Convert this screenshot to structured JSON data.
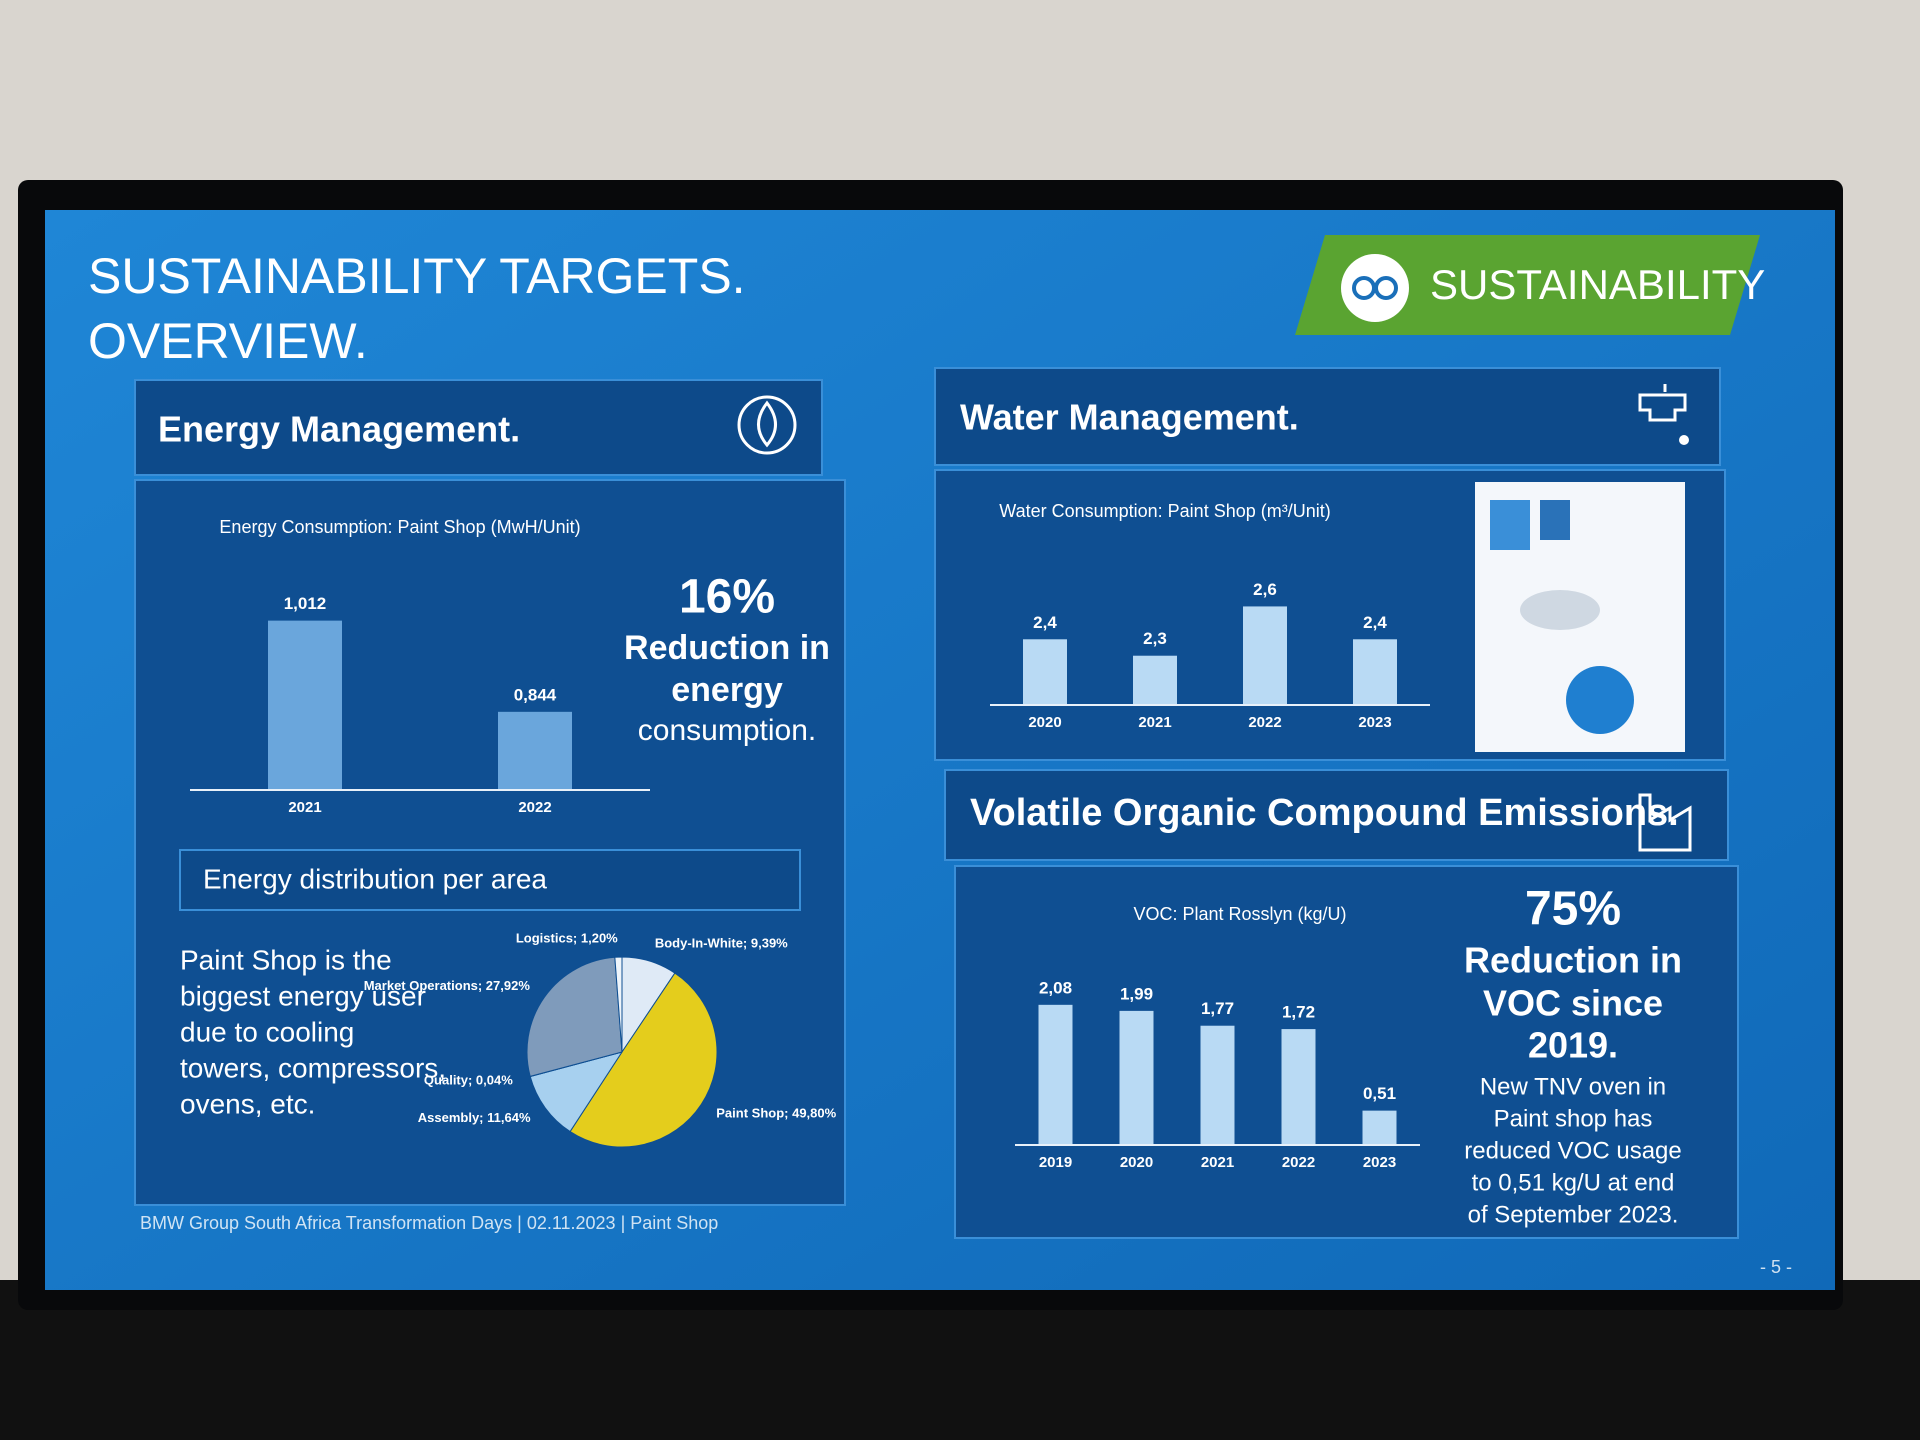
{
  "title_lines": [
    "SUSTAINABILITY TARGETS.",
    "OVERVIEW."
  ],
  "badge": "SUSTAINABILITY",
  "energy": {
    "heading": "Energy Management.",
    "callout": [
      "16%",
      "Reduction in",
      "energy",
      "consumption."
    ],
    "subheading": "Energy distribution per area",
    "text": [
      "Paint Shop is the",
      "biggest energy user",
      "due to cooling",
      "towers, compressors,",
      "ovens, etc."
    ]
  },
  "water": {
    "heading": "Water Management."
  },
  "voc": {
    "heading": "Volatile Organic Compound Emissions.",
    "callout": [
      "75%",
      "Reduction in",
      "VOC since",
      "2019."
    ],
    "text": [
      "New TNV oven in",
      "Paint shop has",
      "reduced VOC usage",
      "to 0,51 kg/U at end",
      "of September 2023."
    ]
  },
  "footer": "BMW Group South Africa Transformation Days | 02.11.2023 | Paint Shop",
  "page_number": "- 5 -",
  "chart_data": [
    {
      "type": "bar",
      "title": "Energy Consumption: Paint Shop (MwH/Unit)",
      "categories": [
        "2021",
        "2022"
      ],
      "values": [
        1.012,
        0.844
      ],
      "value_labels": [
        "1,012",
        "0,844"
      ],
      "color": "#6aa6dc",
      "ylim": [
        0.7,
        1.05
      ]
    },
    {
      "type": "pie",
      "values": [
        9.39,
        49.8,
        11.64,
        0.04,
        27.92,
        1.2
      ],
      "value_labels": [
        "Body-In-White; 9,39%",
        "Paint Shop; 49,80%",
        "Assembly; 11,64%",
        "Quality; 0,04%",
        "Market Operations; 27,92%",
        "Logistics; 1,20%"
      ],
      "colors": [
        "#dfeaf6",
        "#e4cd1c",
        "#a7d0ef",
        "#c9dff2",
        "#7f9bbb",
        "#eef4fa"
      ]
    },
    {
      "type": "bar",
      "title": "Water Consumption: Paint Shop (m³/Unit)",
      "categories": [
        "2020",
        "2021",
        "2022",
        "2023"
      ],
      "values": [
        2.4,
        2.3,
        2.6,
        2.4
      ],
      "value_labels": [
        "2,4",
        "2,3",
        "2,6",
        "2,4"
      ],
      "color": "#b9daf4",
      "ylim": [
        2.0,
        2.7
      ]
    },
    {
      "type": "bar",
      "title": "VOC: Plant Rosslyn (kg/U)",
      "categories": [
        "2019",
        "2020",
        "2021",
        "2022",
        "2023"
      ],
      "values": [
        2.08,
        1.99,
        1.77,
        1.72,
        0.51
      ],
      "value_labels": [
        "2,08",
        "1,99",
        "1,77",
        "1,72",
        "0,51"
      ],
      "color": "#b9daf4",
      "ylim": [
        0,
        2.3
      ]
    }
  ]
}
